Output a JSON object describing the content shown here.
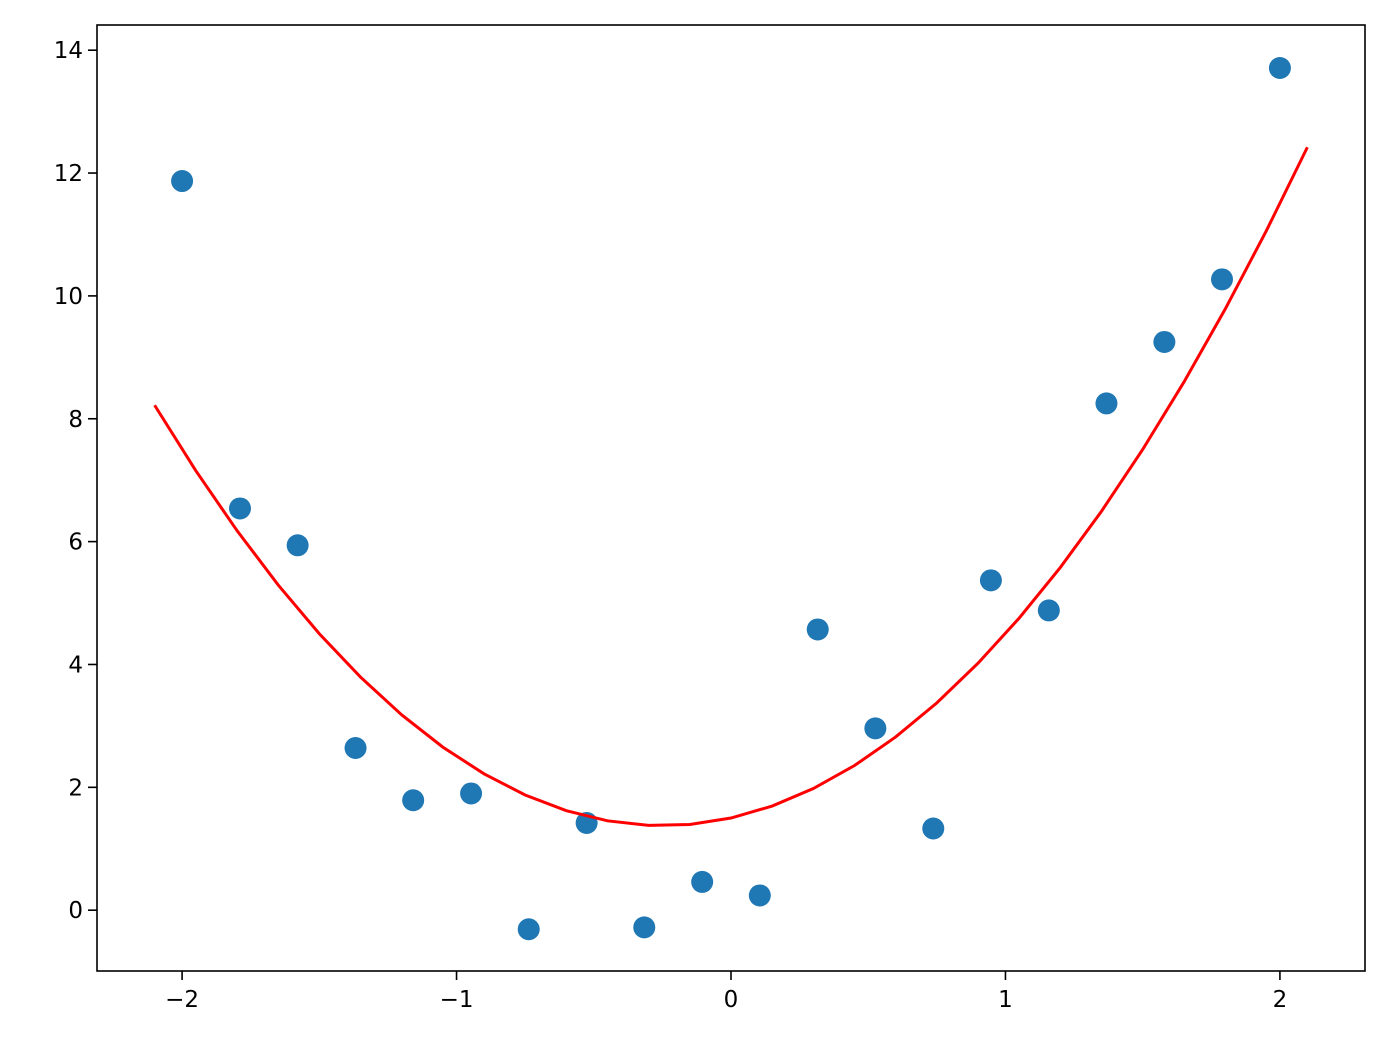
{
  "chart_data": {
    "type": "scatter",
    "xlim": [
      -2.31,
      2.31
    ],
    "ylim": [
      -0.99,
      14.41
    ],
    "xticks": [
      {
        "value": -2,
        "label": "−2"
      },
      {
        "value": -1,
        "label": "−1"
      },
      0,
      1,
      2
    ],
    "yticks": [
      0,
      2,
      4,
      6,
      8,
      10,
      12,
      14
    ],
    "series": [
      {
        "type": "scatter",
        "color": "#1f77b4",
        "x": [
          -2,
          -1.789,
          -1.579,
          -1.368,
          -1.158,
          -0.947,
          -0.737,
          -0.526,
          -0.316,
          -0.105,
          0.105,
          0.316,
          0.526,
          0.737,
          0.947,
          1.158,
          1.368,
          1.579,
          1.789,
          2
        ],
        "values": [
          11.87,
          6.54,
          5.94,
          2.64,
          1.79,
          1.9,
          -0.31,
          1.42,
          -0.28,
          0.46,
          0.24,
          4.57,
          2.96,
          1.33,
          5.37,
          4.88,
          8.25,
          9.25,
          10.27,
          13.71
        ]
      },
      {
        "type": "line",
        "color": "#ff0000",
        "x": [
          -2.1,
          -1.95,
          -1.8,
          -1.65,
          -1.5,
          -1.35,
          -1.2,
          -1.05,
          -0.9,
          -0.75,
          -0.6,
          -0.45,
          -0.3,
          -0.15,
          0,
          0.15,
          0.3,
          0.45,
          0.6,
          0.75,
          0.9,
          1.05,
          1.2,
          1.35,
          1.5,
          1.65,
          1.8,
          1.95,
          2.1
        ],
        "values": [
          8.22,
          7.155,
          6.18,
          5.295,
          4.5,
          3.795,
          3.18,
          2.655,
          2.22,
          1.875,
          1.62,
          1.455,
          1.38,
          1.395,
          1.5,
          1.695,
          1.98,
          2.355,
          2.82,
          3.375,
          4.02,
          4.755,
          5.58,
          6.495,
          7.5,
          8.595,
          9.78,
          11.055,
          12.42
        ]
      }
    ]
  }
}
